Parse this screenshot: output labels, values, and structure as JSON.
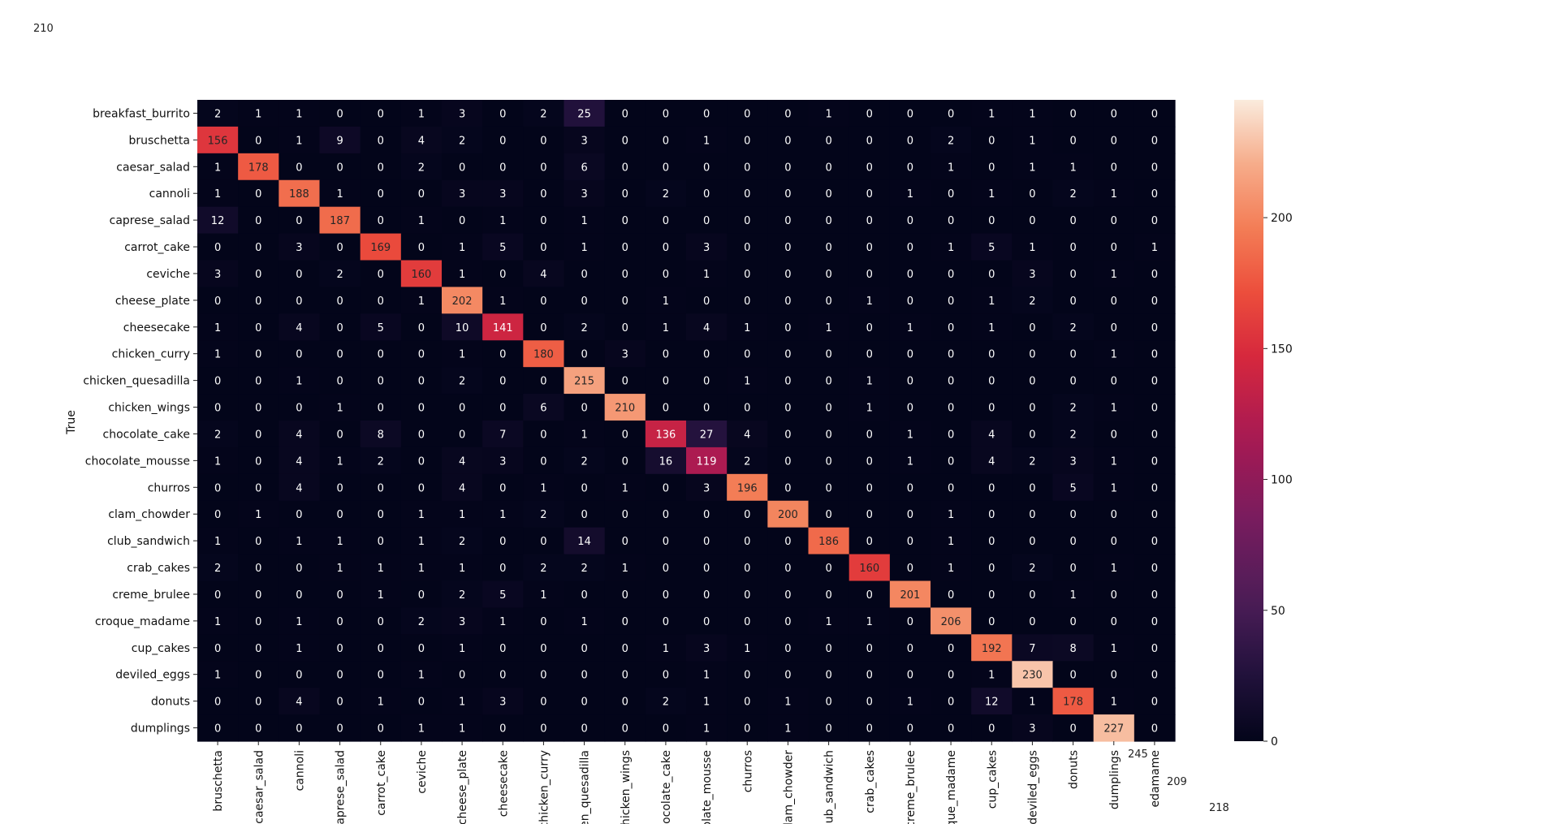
{
  "stray_labels": [
    "210",
    "245",
    "209",
    "218"
  ],
  "chart_data": {
    "type": "heatmap",
    "title": "",
    "xlabel": "",
    "ylabel": "True",
    "row_labels": [
      "breakfast_burrito",
      "bruschetta",
      "caesar_salad",
      "cannoli",
      "caprese_salad",
      "carrot_cake",
      "ceviche",
      "cheese_plate",
      "cheesecake",
      "chicken_curry",
      "chicken_quesadilla",
      "chicken_wings",
      "chocolate_cake",
      "chocolate_mousse",
      "churros",
      "clam_chowder",
      "club_sandwich",
      "crab_cakes",
      "creme_brulee",
      "croque_madame",
      "cup_cakes",
      "deviled_eggs",
      "donuts",
      "dumplings"
    ],
    "col_labels": [
      "bruschetta",
      "caesar_salad",
      "cannoli",
      "caprese_salad",
      "carrot_cake",
      "ceviche",
      "cheese_plate",
      "cheesecake",
      "chicken_curry",
      "chicken_quesadilla",
      "chicken_wings",
      "chocolate_cake",
      "chocolate_mousse",
      "churros",
      "clam_chowder",
      "club_sandwich",
      "crab_cakes",
      "creme_brulee",
      "croque_madame",
      "cup_cakes",
      "deviled_eggs",
      "donuts",
      "dumplings",
      "edamame"
    ],
    "values": [
      [
        2,
        1,
        1,
        0,
        0,
        1,
        3,
        0,
        2,
        25,
        0,
        0,
        0,
        0,
        0,
        1,
        0,
        0,
        0,
        1,
        1,
        0,
        0,
        0
      ],
      [
        156,
        0,
        1,
        9,
        0,
        4,
        2,
        0,
        0,
        3,
        0,
        0,
        1,
        0,
        0,
        0,
        0,
        0,
        2,
        0,
        1,
        0,
        0,
        0
      ],
      [
        1,
        178,
        0,
        0,
        0,
        2,
        0,
        0,
        0,
        6,
        0,
        0,
        0,
        0,
        0,
        0,
        0,
        0,
        1,
        0,
        1,
        1,
        0,
        0
      ],
      [
        1,
        0,
        188,
        1,
        0,
        0,
        3,
        3,
        0,
        3,
        0,
        2,
        0,
        0,
        0,
        0,
        0,
        1,
        0,
        1,
        0,
        2,
        1,
        0
      ],
      [
        12,
        0,
        0,
        187,
        0,
        1,
        0,
        1,
        0,
        1,
        0,
        0,
        0,
        0,
        0,
        0,
        0,
        0,
        0,
        0,
        0,
        0,
        0,
        0
      ],
      [
        0,
        0,
        3,
        0,
        169,
        0,
        1,
        5,
        0,
        1,
        0,
        0,
        3,
        0,
        0,
        0,
        0,
        0,
        1,
        5,
        1,
        0,
        0,
        1
      ],
      [
        3,
        0,
        0,
        2,
        0,
        160,
        1,
        0,
        4,
        0,
        0,
        0,
        1,
        0,
        0,
        0,
        0,
        0,
        0,
        0,
        3,
        0,
        1,
        0
      ],
      [
        0,
        0,
        0,
        0,
        0,
        1,
        202,
        1,
        0,
        0,
        0,
        1,
        0,
        0,
        0,
        0,
        1,
        0,
        0,
        1,
        2,
        0,
        0,
        0
      ],
      [
        1,
        0,
        4,
        0,
        5,
        0,
        10,
        141,
        0,
        2,
        0,
        1,
        4,
        1,
        0,
        1,
        0,
        1,
        0,
        1,
        0,
        2,
        0,
        0
      ],
      [
        1,
        0,
        0,
        0,
        0,
        0,
        1,
        0,
        180,
        0,
        3,
        0,
        0,
        0,
        0,
        0,
        0,
        0,
        0,
        0,
        0,
        0,
        1,
        0
      ],
      [
        0,
        0,
        1,
        0,
        0,
        0,
        2,
        0,
        0,
        215,
        0,
        0,
        0,
        1,
        0,
        0,
        1,
        0,
        0,
        0,
        0,
        0,
        0,
        0
      ],
      [
        0,
        0,
        0,
        1,
        0,
        0,
        0,
        0,
        6,
        0,
        210,
        0,
        0,
        0,
        0,
        0,
        1,
        0,
        0,
        0,
        0,
        2,
        1,
        0
      ],
      [
        2,
        0,
        4,
        0,
        8,
        0,
        0,
        7,
        0,
        1,
        0,
        136,
        27,
        4,
        0,
        0,
        0,
        1,
        0,
        4,
        0,
        2,
        0,
        0
      ],
      [
        1,
        0,
        4,
        1,
        2,
        0,
        4,
        3,
        0,
        2,
        0,
        16,
        119,
        2,
        0,
        0,
        0,
        1,
        0,
        4,
        2,
        3,
        1,
        0
      ],
      [
        0,
        0,
        4,
        0,
        0,
        0,
        4,
        0,
        1,
        0,
        1,
        0,
        3,
        196,
        0,
        0,
        0,
        0,
        0,
        0,
        0,
        5,
        1,
        0
      ],
      [
        0,
        1,
        0,
        0,
        0,
        1,
        1,
        1,
        2,
        0,
        0,
        0,
        0,
        0,
        200,
        0,
        0,
        0,
        1,
        0,
        0,
        0,
        0,
        0
      ],
      [
        1,
        0,
        1,
        1,
        0,
        1,
        2,
        0,
        0,
        14,
        0,
        0,
        0,
        0,
        0,
        186,
        0,
        0,
        1,
        0,
        0,
        0,
        0,
        0
      ],
      [
        2,
        0,
        0,
        1,
        1,
        1,
        1,
        0,
        2,
        2,
        1,
        0,
        0,
        0,
        0,
        0,
        160,
        0,
        1,
        0,
        2,
        0,
        1,
        0
      ],
      [
        0,
        0,
        0,
        0,
        1,
        0,
        2,
        5,
        1,
        0,
        0,
        0,
        0,
        0,
        0,
        0,
        0,
        201,
        0,
        0,
        0,
        1,
        0,
        0
      ],
      [
        1,
        0,
        1,
        0,
        0,
        2,
        3,
        1,
        0,
        1,
        0,
        0,
        0,
        0,
        0,
        1,
        1,
        0,
        206,
        0,
        0,
        0,
        0,
        0
      ],
      [
        0,
        0,
        1,
        0,
        0,
        0,
        1,
        0,
        0,
        0,
        0,
        1,
        3,
        1,
        0,
        0,
        0,
        0,
        0,
        192,
        7,
        8,
        1,
        0
      ],
      [
        1,
        0,
        0,
        0,
        0,
        1,
        0,
        0,
        0,
        0,
        0,
        0,
        1,
        0,
        0,
        0,
        0,
        0,
        0,
        1,
        230,
        0,
        0,
        0
      ],
      [
        0,
        0,
        4,
        0,
        1,
        0,
        1,
        3,
        0,
        0,
        0,
        2,
        1,
        0,
        1,
        0,
        0,
        1,
        0,
        12,
        1,
        178,
        1,
        0
      ],
      [
        0,
        0,
        0,
        0,
        0,
        1,
        1,
        0,
        0,
        0,
        0,
        0,
        1,
        0,
        1,
        0,
        0,
        0,
        0,
        0,
        3,
        0,
        227,
        0
      ]
    ],
    "colorbar": {
      "min": 0,
      "max": 245,
      "ticks": [
        0,
        50,
        100,
        150,
        200
      ],
      "colormap": "rocket"
    }
  }
}
